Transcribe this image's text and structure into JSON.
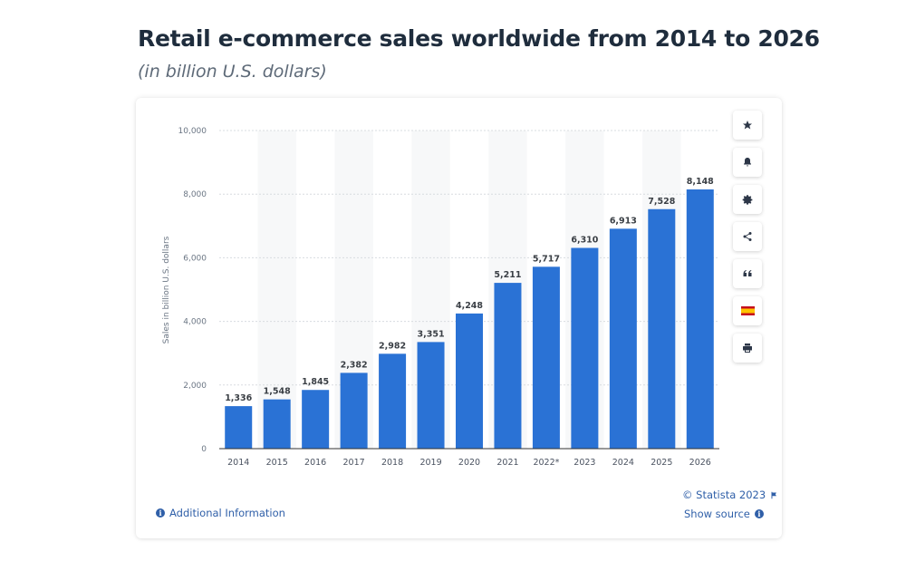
{
  "header": {
    "title": "Retail e-commerce sales worldwide from 2014 to 2026",
    "subtitle": "(in billion U.S. dollars)"
  },
  "chart_data": {
    "type": "bar",
    "categories": [
      "2014",
      "2015",
      "2016",
      "2017",
      "2018",
      "2019",
      "2020",
      "2021",
      "2022*",
      "2023",
      "2024",
      "2025",
      "2026"
    ],
    "values": [
      1336,
      1548,
      1845,
      2382,
      2982,
      3351,
      4248,
      5211,
      5717,
      6310,
      6913,
      7528,
      8148
    ],
    "value_labels": [
      "1,336",
      "1,548",
      "1,845",
      "2,382",
      "2,982",
      "3,351",
      "4,248",
      "5,211",
      "5,717",
      "6,310",
      "6,913",
      "7,528",
      "8,148"
    ],
    "ylabel": "Sales in billion U.S. dollars",
    "ylim": [
      0,
      10000
    ],
    "yticks": [
      0,
      2000,
      4000,
      6000,
      8000,
      10000
    ],
    "ytick_labels": [
      "0",
      "2,000",
      "4,000",
      "6,000",
      "8,000",
      "10,000"
    ],
    "grid": true,
    "bar_color": "#2a72d5"
  },
  "toolbar": {
    "buttons": [
      {
        "name": "star-icon"
      },
      {
        "name": "bell-icon"
      },
      {
        "name": "gear-icon"
      },
      {
        "name": "share-icon"
      },
      {
        "name": "quote-icon"
      },
      {
        "name": "spain-flag-icon"
      },
      {
        "name": "print-icon"
      }
    ]
  },
  "footer": {
    "additional_info": "Additional Information",
    "copyright": "© Statista 2023",
    "show_source": "Show source"
  },
  "colors": {
    "bar": "#2a72d5",
    "link": "#2f5fa8",
    "title": "#1f2d3d"
  }
}
